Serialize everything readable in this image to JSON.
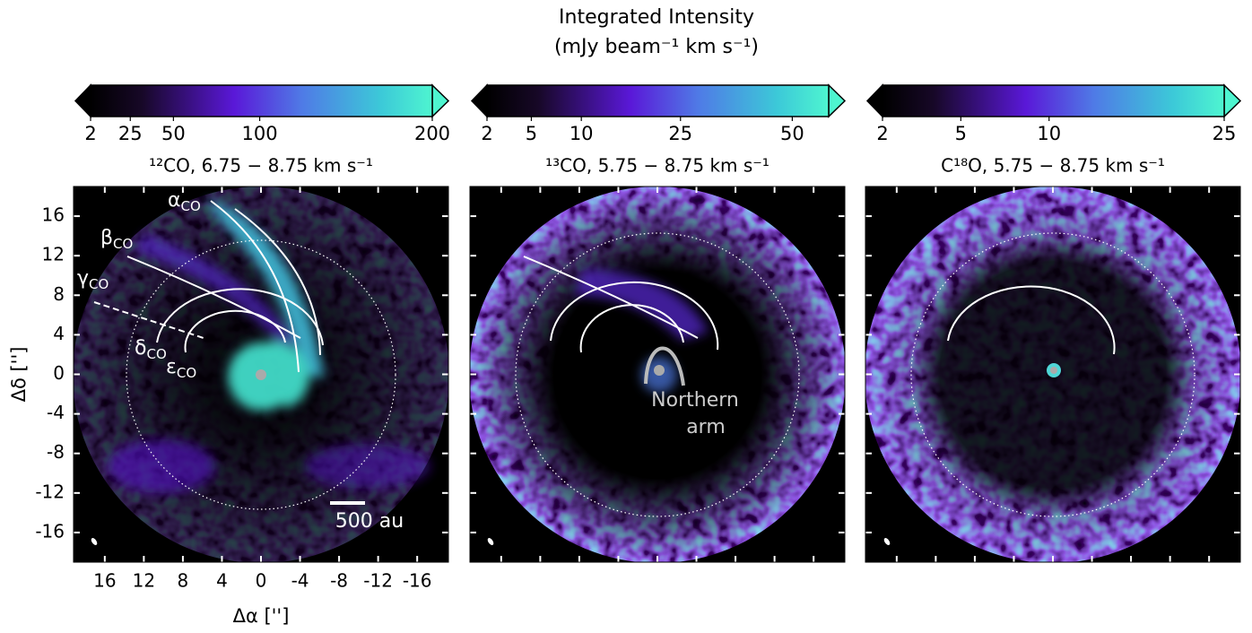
{
  "title": "Integrated Intensity",
  "subtitle": "(mJy beam⁻¹ km s⁻¹)",
  "chart_data": [
    {
      "type": "image",
      "colorbar_label": "¹²CO, 6.75 − 8.75 km s⁻¹",
      "cscale": "linear",
      "clim": [
        2,
        200
      ],
      "cticks": [
        2,
        25,
        50,
        100,
        200
      ],
      "xlim": [
        19.2,
        -19.2
      ],
      "ylim": [
        -19,
        19
      ],
      "xticks": [
        16,
        12,
        8,
        4,
        0,
        -4,
        -8,
        -12,
        -16
      ],
      "yticks": [
        16,
        12,
        8,
        4,
        0,
        -4,
        -8,
        -12,
        -16
      ],
      "tick_labels": true,
      "xlabel": "Δα ['']",
      "ylabel": "Δδ ['']",
      "annotations": [
        {
          "symbol": "α",
          "sub": "CO"
        },
        {
          "symbol": "β",
          "sub": "CO"
        },
        {
          "symbol": "γ",
          "sub": "CO"
        },
        {
          "symbol": "δ",
          "sub": "CO"
        },
        {
          "symbol": "ε",
          "sub": "CO"
        }
      ],
      "scale_bar": "500 au"
    },
    {
      "type": "image",
      "colorbar_label": "¹³CO, 5.75 − 8.75 km s⁻¹",
      "cscale": "sqrt",
      "clim": [
        2,
        60
      ],
      "cticks": [
        2,
        5,
        10,
        25,
        50
      ],
      "xlim": [
        19.2,
        -19.2
      ],
      "ylim": [
        -19,
        19
      ],
      "xticks": [
        16,
        12,
        8,
        4,
        0,
        -4,
        -8,
        -12,
        -16
      ],
      "yticks": [
        16,
        12,
        8,
        4,
        0,
        -4,
        -8,
        -12,
        -16
      ],
      "tick_labels": false,
      "text_lines": [
        "Northern",
        "arm"
      ]
    },
    {
      "type": "image",
      "colorbar_label": "C¹⁸O, 5.75 − 8.75 km s⁻¹",
      "cscale": "sqrt",
      "clim": [
        2,
        25
      ],
      "cticks": [
        2,
        5,
        10,
        25
      ],
      "xlim": [
        19.2,
        -19.2
      ],
      "ylim": [
        -19,
        19
      ],
      "xticks": [
        16,
        12,
        8,
        4,
        0,
        -4,
        -8,
        -12,
        -16
      ],
      "yticks": [
        16,
        12,
        8,
        4,
        0,
        -4,
        -8,
        -12,
        -16
      ],
      "tick_labels": false
    }
  ]
}
